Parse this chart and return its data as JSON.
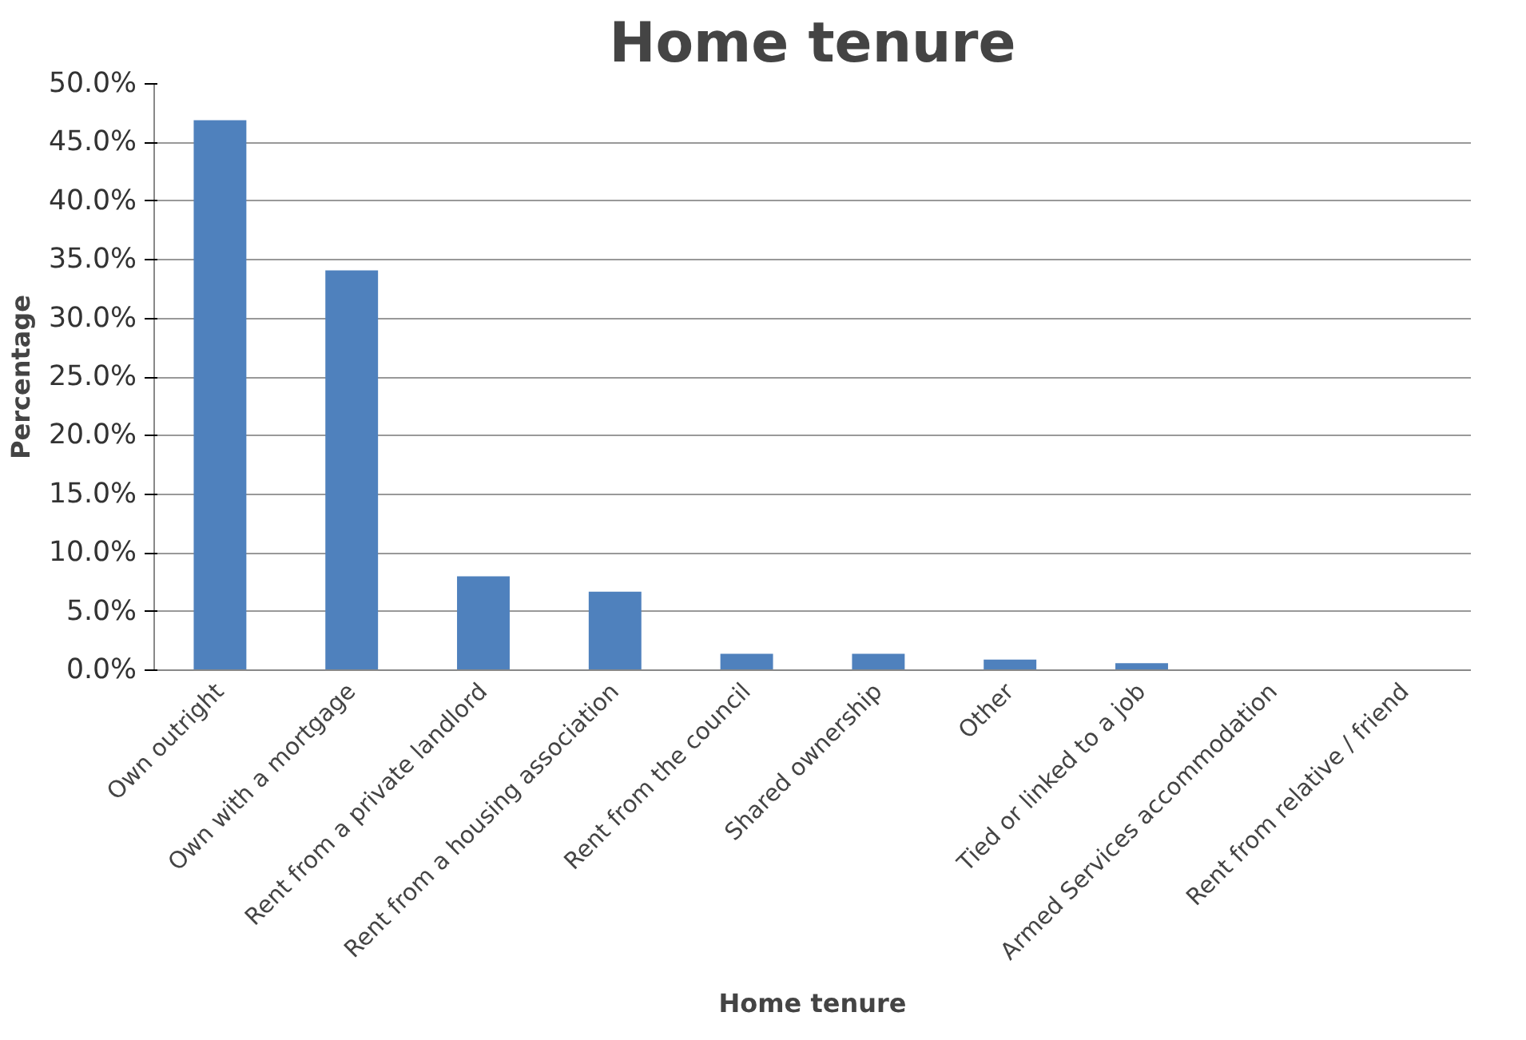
{
  "chart_data": {
    "type": "bar",
    "title": "Home tenure",
    "xlabel": "Home tenure",
    "ylabel": "Percentage",
    "categories": [
      "Own outright",
      "Own with a mortgage",
      "Rent from a private landlord",
      "Rent from a housing association",
      "Rent from the council",
      "Shared ownership",
      "Other",
      "Tied or linked to a job",
      "Armed Services accommodation",
      "Rent from relative / friend"
    ],
    "values": [
      46.9,
      34.1,
      8.0,
      6.7,
      1.4,
      1.4,
      0.9,
      0.6,
      0,
      0
    ],
    "color": "#4f81bd",
    "ylim": [
      0,
      50
    ],
    "yticks": [
      {
        "value": 0,
        "label": "0.0%"
      },
      {
        "value": 5,
        "label": "5.0%"
      },
      {
        "value": 10,
        "label": "10.0%"
      },
      {
        "value": 15,
        "label": "15.0%"
      },
      {
        "value": 20,
        "label": "20.0%"
      },
      {
        "value": 25,
        "label": "25.0%"
      },
      {
        "value": 30,
        "label": "30.0%"
      },
      {
        "value": 35,
        "label": "35.0%"
      },
      {
        "value": 40,
        "label": "40.0%"
      },
      {
        "value": 45,
        "label": "45.0%"
      },
      {
        "value": 50,
        "label": "50.0%"
      }
    ],
    "grid": "y"
  }
}
